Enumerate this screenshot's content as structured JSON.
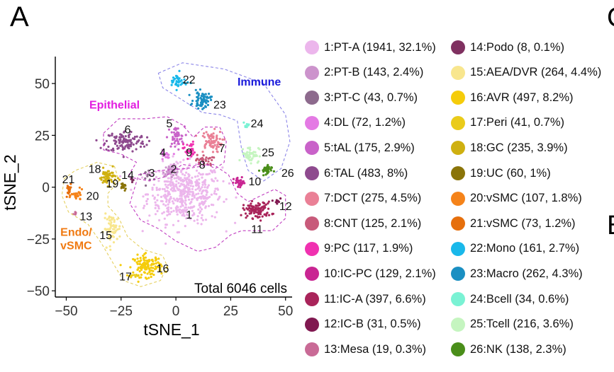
{
  "panel_label": "A",
  "side_labels": [
    "C",
    "B"
  ],
  "chart_data": {
    "type": "scatter",
    "xlabel": "tSNE_1",
    "ylabel": "tSNE_2",
    "xlim": [
      -55,
      53
    ],
    "ylim": [
      -53,
      63
    ],
    "xticks": [
      -50,
      -25,
      0,
      25,
      50
    ],
    "yticks": [
      -50,
      -25,
      0,
      25,
      50
    ],
    "xtick_labels": [
      "−50",
      "−25",
      "0",
      "25",
      "50"
    ],
    "ytick_labels": [
      "−50",
      "−25",
      "0",
      "25",
      "50"
    ],
    "annotation": "Total 6046 cells",
    "groups": [
      {
        "label": "Immune",
        "color": "#1a1adb",
        "x": 38,
        "y": 51
      },
      {
        "label": "Epithelial",
        "color": "#e21ee0",
        "x": -28,
        "y": 40
      },
      {
        "label": "Endo/",
        "color": "#f07a12",
        "x": -45.5,
        "y": -21.5
      },
      {
        "label": "vSMC",
        "color": "#f07a12",
        "x": -45.5,
        "y": -28
      }
    ],
    "clusters": [
      {
        "id": 1,
        "name": "PT-A",
        "count": 1941,
        "pct": "32.1%",
        "color": "#ecb6ec",
        "cx": 4,
        "cy": -3,
        "sx": 13,
        "sy": 11,
        "label_x": 6,
        "label_y": -13
      },
      {
        "id": 2,
        "name": "PT-B",
        "count": 143,
        "pct": "2.4%",
        "color": "#cc93cc",
        "cx": -2,
        "cy": 8,
        "sx": 3,
        "sy": 2,
        "label_x": -1,
        "label_y": 9
      },
      {
        "id": 3,
        "name": "PT-C",
        "count": 43,
        "pct": "0.7%",
        "color": "#8d6a8d",
        "cx": -13,
        "cy": 6,
        "sx": 2,
        "sy": 2,
        "label_x": -11,
        "label_y": 7
      },
      {
        "id": 4,
        "name": "DL",
        "count": 72,
        "pct": "1.2%",
        "color": "#e47ae4",
        "cx": -5,
        "cy": 15,
        "sx": 2,
        "sy": 2,
        "label_x": -6,
        "label_y": 17
      },
      {
        "id": 5,
        "name": "tAL",
        "count": 175,
        "pct": "2.9%",
        "color": "#c962c9",
        "cx": 0,
        "cy": 24,
        "sx": 3,
        "sy": 4,
        "label_x": -3,
        "label_y": 31
      },
      {
        "id": 6,
        "name": "TAL",
        "count": 483,
        "pct": "8%",
        "color": "#8e4a8e",
        "cx": -23,
        "cy": 22,
        "sx": 7,
        "sy": 4,
        "label_x": -22,
        "label_y": 28
      },
      {
        "id": 7,
        "name": "DCT",
        "count": 275,
        "pct": "4.5%",
        "color": "#ea8096",
        "cx": 16,
        "cy": 22,
        "sx": 4,
        "sy": 4,
        "label_x": 21,
        "label_y": 19
      },
      {
        "id": 8,
        "name": "CNT",
        "count": 125,
        "pct": "2.1%",
        "color": "#c85a7a",
        "cx": 13,
        "cy": 13,
        "sx": 3,
        "sy": 2,
        "label_x": 12,
        "label_y": 11
      },
      {
        "id": 9,
        "name": "PC",
        "count": 117,
        "pct": "1.9%",
        "color": "#f031b0",
        "cx": 6,
        "cy": 18,
        "sx": 2,
        "sy": 3,
        "label_x": 6,
        "label_y": 17
      },
      {
        "id": 10,
        "name": "IC-PC",
        "count": 129,
        "pct": "2.1%",
        "color": "#c92592",
        "cx": 29,
        "cy": 2,
        "sx": 2,
        "sy": 2,
        "label_x": 36,
        "label_y": 3
      },
      {
        "id": 11,
        "name": "IC-A",
        "count": 397,
        "pct": "6.6%",
        "color": "#a9245a",
        "cx": 37,
        "cy": -11,
        "sx": 5,
        "sy": 3,
        "label_x": 37,
        "label_y": -20
      },
      {
        "id": 12,
        "name": "IC-B",
        "count": 31,
        "pct": "0.5%",
        "color": "#801850",
        "cx": 46,
        "cy": -7,
        "sx": 1,
        "sy": 2,
        "label_x": 50,
        "label_y": -9
      },
      {
        "id": 13,
        "name": "Mesa",
        "count": 19,
        "pct": "0.3%",
        "color": "#c96a96",
        "cx": -46,
        "cy": -13,
        "sx": 1,
        "sy": 1,
        "label_x": -41,
        "label_y": -14
      },
      {
        "id": 14,
        "name": "Podo",
        "count": 8,
        "pct": "0.1%",
        "color": "#7f3060",
        "cx": -20,
        "cy": 4,
        "sx": 1,
        "sy": 1,
        "label_x": -22,
        "label_y": 6
      },
      {
        "id": 15,
        "name": "AEA/DVR",
        "count": 264,
        "pct": "4.4%",
        "color": "#f8e68e",
        "cx": -29,
        "cy": -20,
        "sx": 3,
        "sy": 5,
        "label_x": -32,
        "label_y": -23
      },
      {
        "id": 16,
        "name": "AVR",
        "count": 497,
        "pct": "8.2%",
        "color": "#f5cc0a",
        "cx": -13,
        "cy": -38,
        "sx": 5,
        "sy": 4,
        "label_x": -6,
        "label_y": -39
      },
      {
        "id": 17,
        "name": "Peri",
        "count": 41,
        "pct": "0.7%",
        "color": "#eacb1a",
        "cx": -20,
        "cy": -43,
        "sx": 2,
        "sy": 1,
        "label_x": -23,
        "label_y": -43
      },
      {
        "id": 18,
        "name": "GC",
        "count": 235,
        "pct": "3.9%",
        "color": "#cfb010",
        "cx": -31,
        "cy": 5,
        "sx": 3,
        "sy": 3,
        "label_x": -37,
        "label_y": 9
      },
      {
        "id": 19,
        "name": "UC",
        "count": 60,
        "pct": "1%",
        "color": "#8a7408",
        "cx": -24,
        "cy": 0,
        "sx": 1,
        "sy": 1,
        "label_x": -29,
        "label_y": 2
      },
      {
        "id": 20,
        "name": "vSMC",
        "count": 107,
        "pct": "1.8%",
        "color": "#f5831a",
        "cx": -45,
        "cy": -4,
        "sx": 2,
        "sy": 2,
        "label_x": -38,
        "label_y": -4
      },
      {
        "id": 21,
        "name": "vSMC",
        "count": 73,
        "pct": "1.2%",
        "color": "#e66f0c",
        "cx": -49,
        "cy": -2,
        "sx": 1,
        "sy": 3,
        "label_x": -49,
        "label_y": 4
      },
      {
        "id": 22,
        "name": "Mono",
        "count": 161,
        "pct": "2.7%",
        "color": "#19b8ea",
        "cx": 1,
        "cy": 51,
        "sx": 3,
        "sy": 3,
        "label_x": 6,
        "label_y": 52
      },
      {
        "id": 23,
        "name": "Macro",
        "count": 262,
        "pct": "4.3%",
        "color": "#1a8fc2",
        "cx": 12,
        "cy": 42,
        "sx": 3,
        "sy": 3,
        "label_x": 20,
        "label_y": 40
      },
      {
        "id": 24,
        "name": "Bcell",
        "count": 34,
        "pct": "0.6%",
        "color": "#7af2d4",
        "cx": 32,
        "cy": 30,
        "sx": 1,
        "sy": 1,
        "label_x": 37,
        "label_y": 31
      },
      {
        "id": 25,
        "name": "Tcell",
        "count": 216,
        "pct": "3.6%",
        "color": "#c5f5c0",
        "cx": 34,
        "cy": 16,
        "sx": 3,
        "sy": 3,
        "label_x": 42,
        "label_y": 17
      },
      {
        "id": 26,
        "name": "NK",
        "count": 138,
        "pct": "2.3%",
        "color": "#4a8e1a",
        "cx": 41,
        "cy": 8,
        "sx": 2,
        "sy": 2,
        "label_x": 51,
        "label_y": 7
      }
    ]
  }
}
